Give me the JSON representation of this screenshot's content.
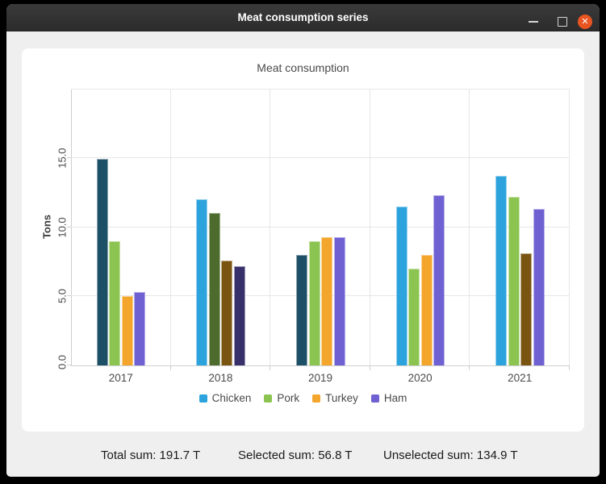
{
  "window": {
    "title": "Meat consumption series",
    "controls": {
      "close_glyph": "✕"
    }
  },
  "chart_data": {
    "type": "bar",
    "title": "Meat consumption",
    "xlabel": "",
    "ylabel": "Tons",
    "categories": [
      "2017",
      "2018",
      "2019",
      "2020",
      "2021"
    ],
    "series": [
      {
        "name": "Chicken",
        "color": "#2CA3DC",
        "selected_color": "#1D4F66",
        "values": [
          14.9,
          12.0,
          8.0,
          11.5,
          13.7
        ],
        "selected": [
          true,
          false,
          true,
          false,
          false
        ]
      },
      {
        "name": "Pork",
        "color": "#8CC452",
        "selected_color": "#4D6B2D",
        "values": [
          9.0,
          11.0,
          9.0,
          7.0,
          12.2
        ],
        "selected": [
          false,
          true,
          false,
          false,
          false
        ]
      },
      {
        "name": "Turkey",
        "color": "#F4A52B",
        "selected_color": "#7A5512",
        "values": [
          5.0,
          7.6,
          9.3,
          8.0,
          8.1
        ],
        "selected": [
          false,
          true,
          false,
          false,
          true
        ]
      },
      {
        "name": "Ham",
        "color": "#6F61D2",
        "selected_color": "#37306B",
        "values": [
          5.3,
          7.2,
          9.3,
          12.3,
          11.3
        ],
        "selected": [
          false,
          true,
          false,
          false,
          false
        ]
      }
    ],
    "ylim": [
      0,
      20
    ],
    "yticks": [
      {
        "v": 0,
        "label": "0.0"
      },
      {
        "v": 5,
        "label": "5.0"
      },
      {
        "v": 10,
        "label": "10.0"
      },
      {
        "v": 15,
        "label": "15.0"
      }
    ],
    "grid": true,
    "legend_position": "bottom"
  },
  "stats": {
    "total": "Total sum: 191.7 T",
    "selected": "Selected sum: 56.8 T",
    "unselected": "Unselected sum: 134.9 T"
  }
}
